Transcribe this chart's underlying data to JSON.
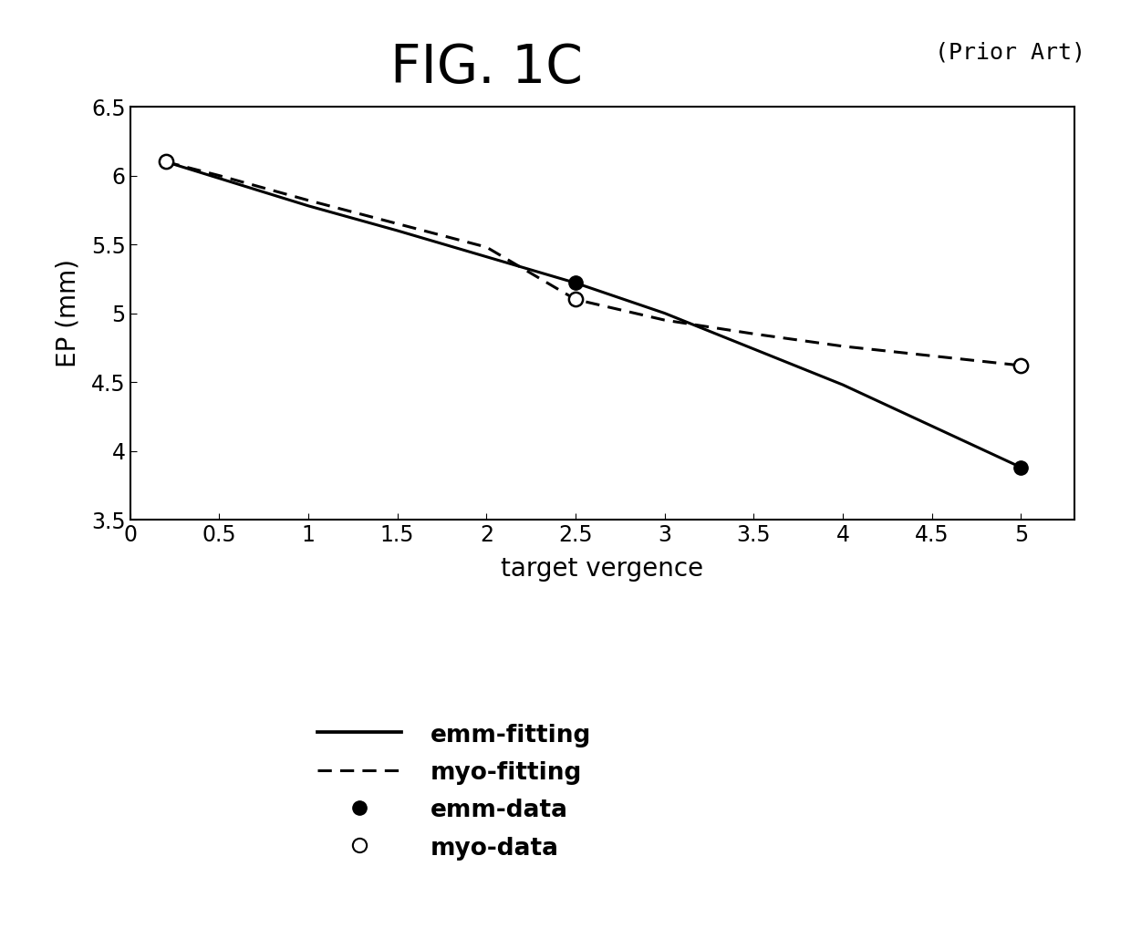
{
  "title": "FIG. 1C",
  "prior_art_text": "(Prior Art)",
  "xlabel": "target vergence",
  "ylabel": "EP (mm)",
  "xlim": [
    0,
    5.3
  ],
  "ylim": [
    3.5,
    6.5
  ],
  "xticks": [
    0,
    0.5,
    1,
    1.5,
    2,
    2.5,
    3,
    3.5,
    4,
    4.5,
    5
  ],
  "yticks": [
    3.5,
    4,
    4.5,
    5,
    5.5,
    6,
    6.5
  ],
  "emm_data_x": [
    0.2,
    2.5,
    5.0
  ],
  "emm_data_y": [
    6.1,
    5.22,
    3.88
  ],
  "myo_data_x": [
    0.2,
    2.5,
    5.0
  ],
  "myo_data_y": [
    6.1,
    5.1,
    4.62
  ],
  "line_color": "#000000",
  "background_color": "#ffffff",
  "title_fontsize": 42,
  "prior_art_fontsize": 18,
  "axis_label_fontsize": 20,
  "tick_fontsize": 17,
  "legend_fontsize": 19,
  "marker_size": 11,
  "line_width": 2.2,
  "emm_curve_x": [
    0.2,
    0.5,
    1.0,
    1.5,
    2.0,
    2.5,
    3.0,
    3.5,
    4.0,
    4.5,
    5.0
  ],
  "emm_curve_y": [
    6.1,
    5.98,
    5.78,
    5.6,
    5.41,
    5.22,
    5.0,
    4.74,
    4.48,
    4.18,
    3.88
  ],
  "myo_curve_x": [
    0.2,
    0.5,
    1.0,
    1.5,
    2.0,
    2.5,
    3.0,
    3.5,
    4.0,
    4.5,
    5.0
  ],
  "myo_curve_y": [
    6.1,
    6.0,
    5.82,
    5.65,
    5.48,
    5.1,
    4.95,
    4.85,
    4.76,
    4.69,
    4.62
  ]
}
